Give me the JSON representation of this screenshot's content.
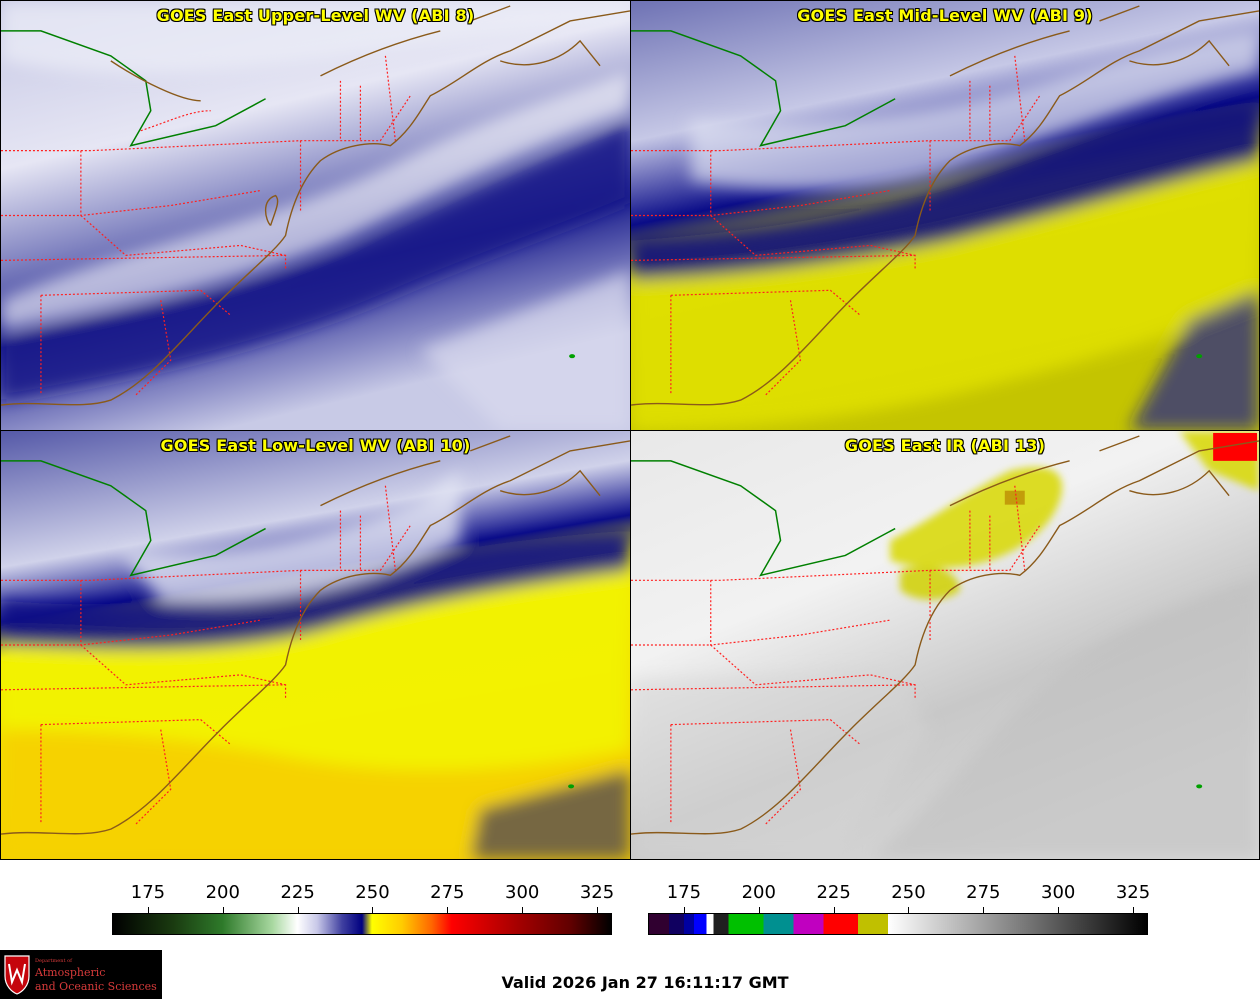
{
  "panels": [
    {
      "id": "upper",
      "title": "GOES East Upper-Level WV (ABI 8)"
    },
    {
      "id": "mid",
      "title": "GOES East Mid-Level WV (ABI 9)"
    },
    {
      "id": "low",
      "title": "GOES East Low-Level WV (ABI 10)"
    },
    {
      "id": "ir",
      "title": "GOES East IR (ABI 13)"
    }
  ],
  "colorbars": {
    "wv": {
      "ticks": [
        "175",
        "200",
        "225",
        "250",
        "275",
        "300",
        "325"
      ],
      "tick_values": [
        175,
        200,
        225,
        250,
        275,
        300,
        325
      ],
      "range": [
        163,
        330
      ],
      "stops": [
        [
          0.0,
          "#000000"
        ],
        [
          0.12,
          "#1a3a10"
        ],
        [
          0.22,
          "#2e7a2a"
        ],
        [
          0.32,
          "#a8d8a0"
        ],
        [
          0.37,
          "#ffffff"
        ],
        [
          0.41,
          "#c8c8e8"
        ],
        [
          0.46,
          "#4040a0"
        ],
        [
          0.5,
          "#000080"
        ],
        [
          0.52,
          "#ffff00"
        ],
        [
          0.58,
          "#ffcc00"
        ],
        [
          0.64,
          "#ff6600"
        ],
        [
          0.68,
          "#ff0000"
        ],
        [
          0.82,
          "#a00000"
        ],
        [
          0.92,
          "#600000"
        ],
        [
          1.0,
          "#000000"
        ]
      ]
    },
    "ir": {
      "ticks": [
        "175",
        "200",
        "225",
        "250",
        "275",
        "300",
        "325"
      ],
      "tick_values": [
        175,
        200,
        225,
        250,
        275,
        300,
        325
      ],
      "range": [
        163,
        330
      ],
      "segments": [
        [
          0.0,
          "#300030"
        ],
        [
          0.04,
          "#100060"
        ],
        [
          0.07,
          "#0000a0"
        ],
        [
          0.09,
          "#0000ff"
        ],
        [
          0.115,
          "#ffffff"
        ],
        [
          0.13,
          "#202020"
        ],
        [
          0.16,
          "#00c000"
        ],
        [
          0.23,
          "#009090"
        ],
        [
          0.29,
          "#c000c0"
        ],
        [
          0.35,
          "#ff0000"
        ],
        [
          0.42,
          "#c0c000"
        ],
        [
          0.48,
          "#ffff00"
        ]
      ],
      "gray_from": 0.48
    }
  },
  "logo": {
    "line1": "Department of",
    "line2": "Atmospheric",
    "line3": "and Oceanic Sciences"
  },
  "valid_time": "Valid 2026 Jan 27 16:11:17 GMT",
  "colors": {
    "coast": "#8a5a1a",
    "state_border": "#ff2020",
    "country_border": "#008000"
  }
}
